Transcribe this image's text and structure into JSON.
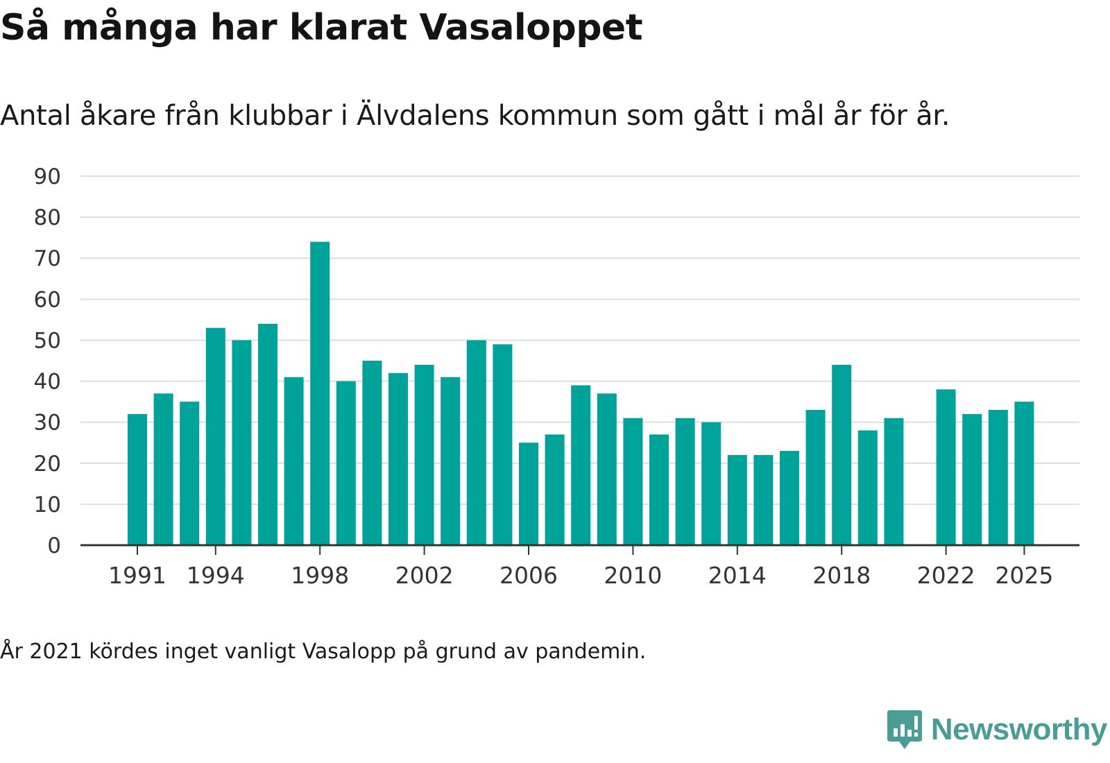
{
  "header": {
    "title": "Så många har klarat Vasaloppet",
    "subtitle": "Antal åkare från klubbar i Älvdalens kommun som gått i mål år för år."
  },
  "footer": {
    "note": "År 2021 kördes inget vanligt Vasalopp på grund av pandemin.",
    "brand": "Newsworthy"
  },
  "colors": {
    "bar": "#00a39a",
    "grid": "#dddddd",
    "axis": "#333333",
    "brand": "#4a9d95"
  },
  "chart_data": {
    "type": "bar",
    "title": "Så många har klarat Vasaloppet",
    "subtitle": "Antal åkare från klubbar i Älvdalens kommun som gått i mål år för år.",
    "xlabel": "",
    "ylabel": "",
    "ylim": [
      0,
      90
    ],
    "yticks": [
      0,
      10,
      20,
      30,
      40,
      50,
      60,
      70,
      80,
      90
    ],
    "xticks": [
      1991,
      1994,
      1998,
      2002,
      2006,
      2010,
      2014,
      2018,
      2022,
      2025
    ],
    "grid": true,
    "categories": [
      1991,
      1992,
      1993,
      1994,
      1995,
      1996,
      1997,
      1998,
      1999,
      2000,
      2001,
      2002,
      2003,
      2004,
      2005,
      2006,
      2007,
      2008,
      2009,
      2010,
      2011,
      2012,
      2013,
      2014,
      2015,
      2016,
      2017,
      2018,
      2019,
      2020,
      2021,
      2022,
      2023,
      2024,
      2025
    ],
    "values": [
      32,
      37,
      35,
      53,
      50,
      54,
      41,
      74,
      40,
      45,
      42,
      44,
      41,
      50,
      49,
      25,
      27,
      39,
      37,
      31,
      27,
      31,
      30,
      22,
      22,
      23,
      33,
      44,
      28,
      31,
      null,
      38,
      32,
      33,
      35
    ]
  }
}
